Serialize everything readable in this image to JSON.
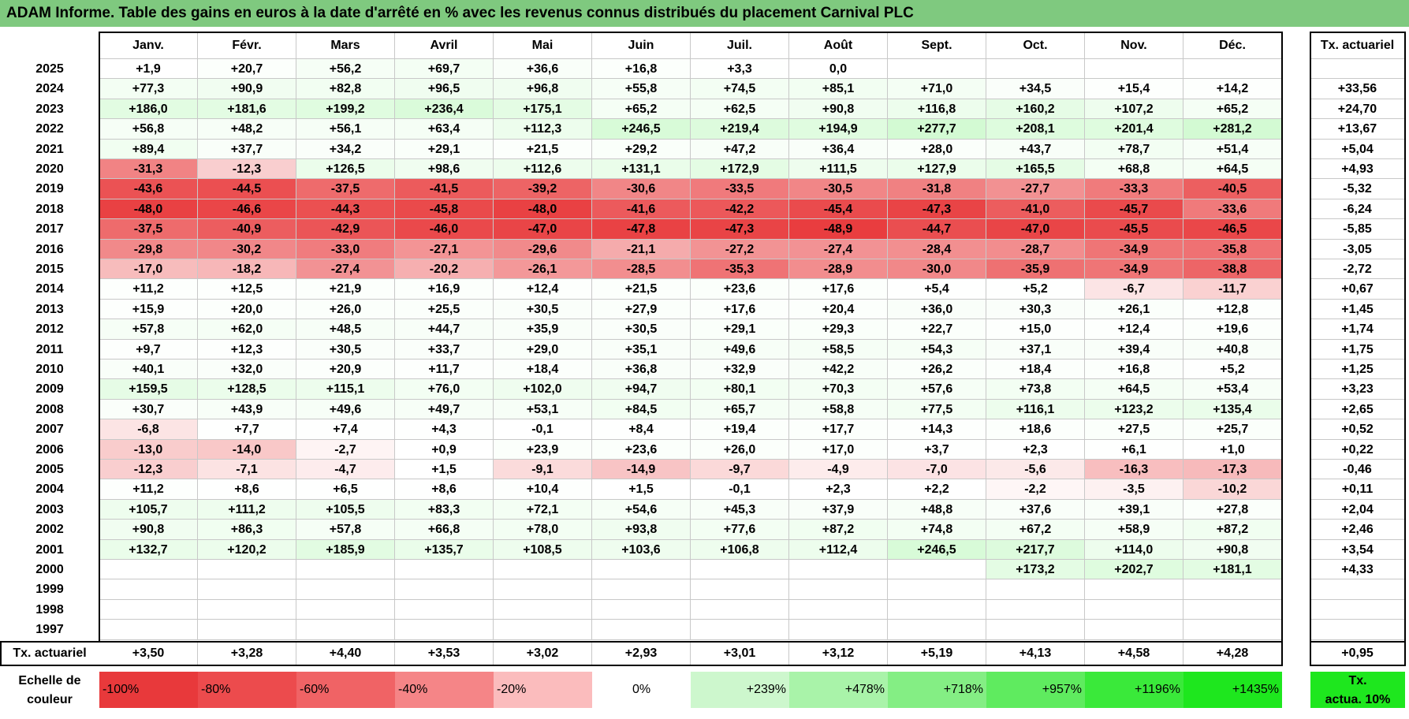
{
  "title": "ADAM Informe. Table des gains en euros à la date d'arrêté en % avec les revenus connus distribués du placement Carnival PLC",
  "months": [
    "Janv.",
    "Févr.",
    "Mars",
    "Avril",
    "Mai",
    "Juin",
    "Juil.",
    "Août",
    "Sept.",
    "Oct.",
    "Nov.",
    "Déc."
  ],
  "actuarial_header": "Tx. actuariel",
  "rows": [
    {
      "year": "2025",
      "values": [
        "+1,9",
        "+20,7",
        "+56,2",
        "+69,7",
        "+36,6",
        "+16,8",
        "+3,3",
        "0,0",
        "",
        "",
        "",
        ""
      ],
      "rate": ""
    },
    {
      "year": "2024",
      "values": [
        "+77,3",
        "+90,9",
        "+82,8",
        "+96,5",
        "+96,8",
        "+55,8",
        "+74,5",
        "+85,1",
        "+71,0",
        "+34,5",
        "+15,4",
        "+14,2"
      ],
      "rate": "+33,56"
    },
    {
      "year": "2023",
      "values": [
        "+186,0",
        "+181,6",
        "+199,2",
        "+236,4",
        "+175,1",
        "+65,2",
        "+62,5",
        "+90,8",
        "+116,8",
        "+160,2",
        "+107,2",
        "+65,2"
      ],
      "rate": "+24,70"
    },
    {
      "year": "2022",
      "values": [
        "+56,8",
        "+48,2",
        "+56,1",
        "+63,4",
        "+112,3",
        "+246,5",
        "+219,4",
        "+194,9",
        "+277,7",
        "+208,1",
        "+201,4",
        "+281,2"
      ],
      "rate": "+13,67"
    },
    {
      "year": "2021",
      "values": [
        "+89,4",
        "+37,7",
        "+34,2",
        "+29,1",
        "+21,5",
        "+29,2",
        "+47,2",
        "+36,4",
        "+28,0",
        "+43,7",
        "+78,7",
        "+51,4"
      ],
      "rate": "+5,04"
    },
    {
      "year": "2020",
      "values": [
        "-31,3",
        "-12,3",
        "+126,5",
        "+98,6",
        "+112,6",
        "+131,1",
        "+172,9",
        "+111,5",
        "+127,9",
        "+165,5",
        "+68,8",
        "+64,5"
      ],
      "rate": "+4,93"
    },
    {
      "year": "2019",
      "values": [
        "-43,6",
        "-44,5",
        "-37,5",
        "-41,5",
        "-39,2",
        "-30,6",
        "-33,5",
        "-30,5",
        "-31,8",
        "-27,7",
        "-33,3",
        "-40,5"
      ],
      "rate": "-5,32"
    },
    {
      "year": "2018",
      "values": [
        "-48,0",
        "-46,6",
        "-44,3",
        "-45,8",
        "-48,0",
        "-41,6",
        "-42,2",
        "-45,4",
        "-47,3",
        "-41,0",
        "-45,7",
        "-33,6"
      ],
      "rate": "-6,24"
    },
    {
      "year": "2017",
      "values": [
        "-37,5",
        "-40,9",
        "-42,9",
        "-46,0",
        "-47,0",
        "-47,8",
        "-47,3",
        "-48,9",
        "-44,7",
        "-47,0",
        "-45,5",
        "-46,5"
      ],
      "rate": "-5,85"
    },
    {
      "year": "2016",
      "values": [
        "-29,8",
        "-30,2",
        "-33,0",
        "-27,1",
        "-29,6",
        "-21,1",
        "-27,2",
        "-27,4",
        "-28,4",
        "-28,7",
        "-34,9",
        "-35,8"
      ],
      "rate": "-3,05"
    },
    {
      "year": "2015",
      "values": [
        "-17,0",
        "-18,2",
        "-27,4",
        "-20,2",
        "-26,1",
        "-28,5",
        "-35,3",
        "-28,9",
        "-30,0",
        "-35,9",
        "-34,9",
        "-38,8"
      ],
      "rate": "-2,72"
    },
    {
      "year": "2014",
      "values": [
        "+11,2",
        "+12,5",
        "+21,9",
        "+16,9",
        "+12,4",
        "+21,5",
        "+23,6",
        "+17,6",
        "+5,4",
        "+5,2",
        "-6,7",
        "-11,7"
      ],
      "rate": "+0,67"
    },
    {
      "year": "2013",
      "values": [
        "+15,9",
        "+20,0",
        "+26,0",
        "+25,5",
        "+30,5",
        "+27,9",
        "+17,6",
        "+20,4",
        "+36,0",
        "+30,3",
        "+26,1",
        "+12,8"
      ],
      "rate": "+1,45"
    },
    {
      "year": "2012",
      "values": [
        "+57,8",
        "+62,0",
        "+48,5",
        "+44,7",
        "+35,9",
        "+30,5",
        "+29,1",
        "+29,3",
        "+22,7",
        "+15,0",
        "+12,4",
        "+19,6"
      ],
      "rate": "+1,74"
    },
    {
      "year": "2011",
      "values": [
        "+9,7",
        "+12,3",
        "+30,5",
        "+33,7",
        "+29,0",
        "+35,1",
        "+49,6",
        "+58,5",
        "+54,3",
        "+37,1",
        "+39,4",
        "+40,8"
      ],
      "rate": "+1,75"
    },
    {
      "year": "2010",
      "values": [
        "+40,1",
        "+32,0",
        "+20,9",
        "+11,7",
        "+18,4",
        "+36,8",
        "+32,9",
        "+42,2",
        "+26,2",
        "+18,4",
        "+16,8",
        "+5,2"
      ],
      "rate": "+1,25"
    },
    {
      "year": "2009",
      "values": [
        "+159,5",
        "+128,5",
        "+115,1",
        "+76,0",
        "+102,0",
        "+94,7",
        "+80,1",
        "+70,3",
        "+57,6",
        "+73,8",
        "+64,5",
        "+53,4"
      ],
      "rate": "+3,23"
    },
    {
      "year": "2008",
      "values": [
        "+30,7",
        "+43,9",
        "+49,6",
        "+49,7",
        "+53,1",
        "+84,5",
        "+65,7",
        "+58,8",
        "+77,5",
        "+116,1",
        "+123,2",
        "+135,4"
      ],
      "rate": "+2,65"
    },
    {
      "year": "2007",
      "values": [
        "-6,8",
        "+7,7",
        "+7,4",
        "+4,3",
        "-0,1",
        "+8,4",
        "+19,4",
        "+17,7",
        "+14,3",
        "+18,6",
        "+27,5",
        "+25,7"
      ],
      "rate": "+0,52"
    },
    {
      "year": "2006",
      "values": [
        "-13,0",
        "-14,0",
        "-2,7",
        "+0,9",
        "+23,9",
        "+23,6",
        "+26,0",
        "+17,0",
        "+3,7",
        "+2,3",
        "+6,1",
        "+1,0"
      ],
      "rate": "+0,22"
    },
    {
      "year": "2005",
      "values": [
        "-12,3",
        "-7,1",
        "-4,7",
        "+1,5",
        "-9,1",
        "-14,9",
        "-9,7",
        "-4,9",
        "-7,0",
        "-5,6",
        "-16,3",
        "-17,3"
      ],
      "rate": "-0,46"
    },
    {
      "year": "2004",
      "values": [
        "+11,2",
        "+8,6",
        "+6,5",
        "+8,6",
        "+10,4",
        "+1,5",
        "-0,1",
        "+2,3",
        "+2,2",
        "-2,2",
        "-3,5",
        "-10,2"
      ],
      "rate": "+0,11"
    },
    {
      "year": "2003",
      "values": [
        "+105,7",
        "+111,2",
        "+105,5",
        "+83,3",
        "+72,1",
        "+54,6",
        "+45,3",
        "+37,9",
        "+48,8",
        "+37,6",
        "+39,1",
        "+27,8"
      ],
      "rate": "+2,04"
    },
    {
      "year": "2002",
      "values": [
        "+90,8",
        "+86,3",
        "+57,8",
        "+66,8",
        "+78,0",
        "+93,8",
        "+77,6",
        "+87,2",
        "+74,8",
        "+67,2",
        "+58,9",
        "+87,2"
      ],
      "rate": "+2,46"
    },
    {
      "year": "2001",
      "values": [
        "+132,7",
        "+120,2",
        "+185,9",
        "+135,7",
        "+108,5",
        "+103,6",
        "+106,8",
        "+112,4",
        "+246,5",
        "+217,7",
        "+114,0",
        "+90,8"
      ],
      "rate": "+3,54"
    },
    {
      "year": "2000",
      "values": [
        "",
        "",
        "",
        "",
        "",
        "",
        "",
        "",
        "",
        "+173,2",
        "+202,7",
        "+181,1"
      ],
      "rate": "+4,33"
    },
    {
      "year": "1999",
      "values": [
        "",
        "",
        "",
        "",
        "",
        "",
        "",
        "",
        "",
        "",
        "",
        ""
      ],
      "rate": ""
    },
    {
      "year": "1998",
      "values": [
        "",
        "",
        "",
        "",
        "",
        "",
        "",
        "",
        "",
        "",
        "",
        ""
      ],
      "rate": ""
    },
    {
      "year": "1997",
      "values": [
        "",
        "",
        "",
        "",
        "",
        "",
        "",
        "",
        "",
        "",
        "",
        ""
      ],
      "rate": ""
    }
  ],
  "footer": {
    "label": "Tx. actuariel",
    "values": [
      "+3,50",
      "+3,28",
      "+4,40",
      "+3,53",
      "+3,02",
      "+2,93",
      "+3,01",
      "+3,12",
      "+5,19",
      "+4,13",
      "+4,58",
      "+4,28"
    ],
    "overall": "+0,95"
  },
  "legend": {
    "label_line1": "Echelle de",
    "label_line2": "couleur",
    "items": [
      {
        "text": "-100%",
        "color": "#e8393b",
        "align": "left"
      },
      {
        "text": "-80%",
        "color": "#ec4b4d",
        "align": "left"
      },
      {
        "text": "-60%",
        "color": "#f06365",
        "align": "left"
      },
      {
        "text": "-40%",
        "color": "#f58587",
        "align": "left"
      },
      {
        "text": "-20%",
        "color": "#fbbcbd",
        "align": "left"
      },
      {
        "text": "0%",
        "color": "#ffffff",
        "align": "center"
      },
      {
        "text": "+239%",
        "color": "#cdf7cd",
        "align": "right"
      },
      {
        "text": "+478%",
        "color": "#a9f3a9",
        "align": "right"
      },
      {
        "text": "+718%",
        "color": "#84ee84",
        "align": "right"
      },
      {
        "text": "+957%",
        "color": "#5feb5f",
        "align": "right"
      },
      {
        "text": "+1196%",
        "color": "#3ae93a",
        "align": "right"
      },
      {
        "text": "+1435%",
        "color": "#1ee71e",
        "align": "right"
      }
    ],
    "rate_line1": "Tx.",
    "rate_line2": "actua. 10%",
    "rate_color": "#1ee71e"
  },
  "colors": {
    "title_bg": "#7fc97f",
    "negative": "#e8393b",
    "positive": "#1ee71e",
    "neutral": "#ffffff"
  }
}
